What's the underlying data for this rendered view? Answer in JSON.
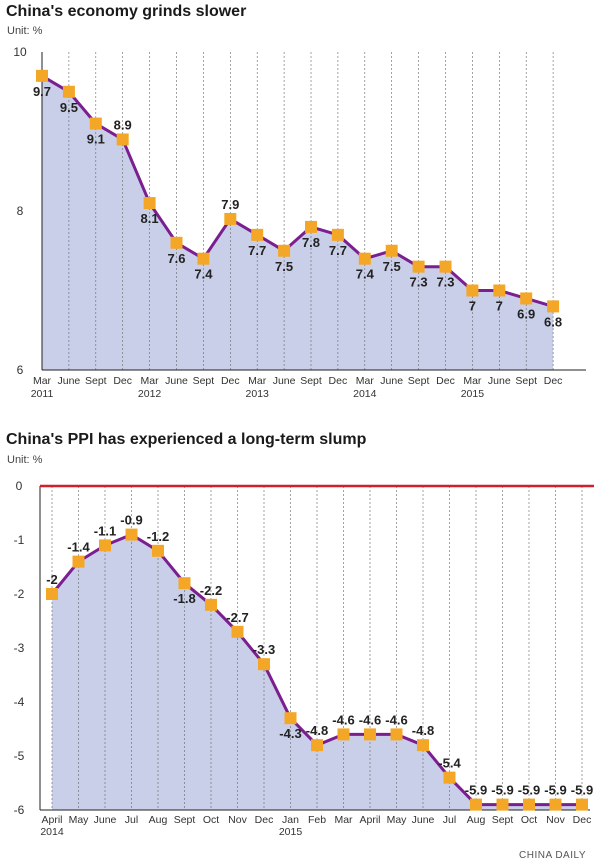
{
  "chart_data": [
    {
      "type": "line",
      "title": "China's economy grinds slower",
      "unit": "Unit: %",
      "categories": [
        "Mar",
        "June",
        "Sept",
        "Dec",
        "Mar",
        "June",
        "Sept",
        "Dec",
        "Mar",
        "June",
        "Sept",
        "Dec",
        "Mar",
        "June",
        "Sept",
        "Dec",
        "Mar",
        "June",
        "Sept",
        "Dec"
      ],
      "year_labels": [
        "2011",
        "",
        "",
        "",
        "2012",
        "",
        "",
        "",
        "2013",
        "",
        "",
        "",
        "2014",
        "",
        "",
        "",
        "2015",
        "",
        "",
        ""
      ],
      "values": [
        9.7,
        9.5,
        9.1,
        8.9,
        8.1,
        7.6,
        7.4,
        7.9,
        7.7,
        7.5,
        7.8,
        7.7,
        7.4,
        7.5,
        7.3,
        7.3,
        7,
        7,
        6.9,
        6.8
      ],
      "value_labels": [
        "9.7",
        "9.5",
        "9.1",
        "8.9",
        "8.1",
        "7.6",
        "7.4",
        "7.9",
        "7.7",
        "7.5",
        "7.8",
        "7.7",
        "7.4",
        "7.5",
        "7.3",
        "7.3",
        "7",
        "7",
        "6.9",
        "6.8"
      ],
      "label_positions": [
        "below",
        "below",
        "below",
        "above",
        "below",
        "below",
        "below",
        "above",
        "below",
        "below",
        "below",
        "below",
        "below",
        "below",
        "below",
        "below",
        "below",
        "below",
        "below",
        "below"
      ],
      "yticks": [
        "6",
        "8",
        "10"
      ],
      "ylim": [
        6,
        10
      ],
      "colors": {
        "line": "#7b1e8f",
        "marker": "#f4a726",
        "fill": "#c9cfe8",
        "grid": "#666666"
      }
    },
    {
      "type": "line",
      "title": "China's PPI has experienced a long-term slump",
      "unit": "Unit: %",
      "categories": [
        "April",
        "May",
        "June",
        "Jul",
        "Aug",
        "Sept",
        "Oct",
        "Nov",
        "Dec",
        "Jan",
        "Feb",
        "Mar",
        "April",
        "May",
        "June",
        "Jul",
        "Aug",
        "Sept",
        "Oct",
        "Nov",
        "Dec"
      ],
      "year_labels": [
        "2014",
        "",
        "",
        "",
        "",
        "",
        "",
        "",
        "",
        "2015",
        "",
        "",
        "",
        "",
        "",
        "",
        "",
        "",
        "",
        "",
        ""
      ],
      "values": [
        -2,
        -1.4,
        -1.1,
        -0.9,
        -1.2,
        -1.8,
        -2.2,
        -2.7,
        -3.3,
        -4.3,
        -4.8,
        -4.6,
        -4.6,
        -4.6,
        -4.8,
        -5.4,
        -5.9,
        -5.9,
        -5.9,
        -5.9,
        -5.9
      ],
      "value_labels": [
        "-2",
        "-1.4",
        "-1.1",
        "-0.9",
        "-1.2",
        "-1.8",
        "-2.2",
        "-2.7",
        "-3.3",
        "-4.3",
        "-4.8",
        "-4.6",
        "-4.6",
        "-4.6",
        "-4.8",
        "-5.4",
        "-5.9",
        "-5.9",
        "-5.9",
        "-5.9",
        "-5.9"
      ],
      "label_positions": [
        "above",
        "above",
        "above",
        "above",
        "above",
        "below",
        "above",
        "above",
        "above",
        "below",
        "above",
        "above",
        "above",
        "above",
        "above",
        "above",
        "above",
        "above",
        "above",
        "above",
        "above"
      ],
      "yticks": [
        "0",
        "-1",
        "-2",
        "-3",
        "-4",
        "-5",
        "-6"
      ],
      "ylim": [
        -6,
        0
      ],
      "colors": {
        "line": "#7b1e8f",
        "marker": "#f4a726",
        "fill": "#c9cfe8",
        "grid": "#666666",
        "zero_line": "#d0202a"
      }
    }
  ],
  "credit": "CHINA DAILY"
}
